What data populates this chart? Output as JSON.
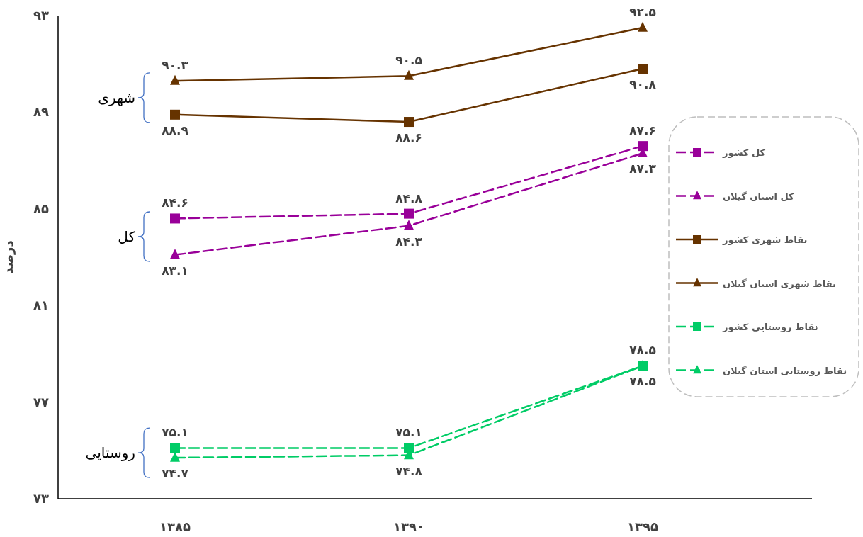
{
  "chart_data": {
    "type": "line",
    "ylabel": "درصد",
    "categories": [
      "۱۳۸۵",
      "۱۳۹۰",
      "۱۳۹۵"
    ],
    "ylim": [
      73,
      93
    ],
    "yticks": [
      {
        "value": 73,
        "label": "۷۳"
      },
      {
        "value": 77,
        "label": "۷۷"
      },
      {
        "value": 81,
        "label": "۸۱"
      },
      {
        "value": 85,
        "label": "۸۵"
      },
      {
        "value": 89,
        "label": "۸۹"
      },
      {
        "value": 93,
        "label": "۹۳"
      }
    ],
    "grid": false,
    "legend": "right",
    "series": [
      {
        "name": "کل کشور",
        "color": "#990099",
        "marker": "square",
        "line_style": "dashed",
        "values": [
          84.6,
          84.8,
          87.6
        ],
        "value_labels": [
          "۸۴.۶",
          "۸۴.۸",
          "۸۷.۶"
        ]
      },
      {
        "name": "کل استان گیلان",
        "color": "#990099",
        "marker": "triangle",
        "line_style": "dashed",
        "values": [
          83.1,
          84.3,
          87.3
        ],
        "value_labels": [
          "۸۳.۱",
          "۸۴.۳",
          "۸۷.۳"
        ]
      },
      {
        "name": "نقاط شهری کشور",
        "color": "#663300",
        "marker": "square",
        "line_style": "solid",
        "values": [
          88.9,
          88.6,
          90.8
        ],
        "value_labels": [
          "۸۸.۹",
          "۸۸.۶",
          "۹۰.۸"
        ]
      },
      {
        "name": "نقاط شهری استان گیلان",
        "color": "#663300",
        "marker": "triangle",
        "line_style": "solid",
        "values": [
          90.3,
          90.5,
          92.5
        ],
        "value_labels": [
          "۹۰.۳",
          "۹۰.۵",
          "۹۲.۵"
        ]
      },
      {
        "name": "نقاط روستایی کشور",
        "color": "#00cc66",
        "marker": "square",
        "line_style": "dashed",
        "values": [
          75.1,
          75.1,
          78.5
        ],
        "value_labels": [
          "۷۵.۱",
          "۷۵.۱",
          "۷۸.۵"
        ]
      },
      {
        "name": "نقاط روستایی استان گیلان",
        "color": "#00cc66",
        "marker": "triangle",
        "line_style": "dashed",
        "values": [
          74.7,
          74.8,
          78.5
        ],
        "value_labels": [
          "۷۴.۷",
          "۷۴.۸",
          "۷۸.۵"
        ]
      }
    ],
    "annotations": [
      "کل",
      "شهری",
      "روستایی"
    ]
  }
}
